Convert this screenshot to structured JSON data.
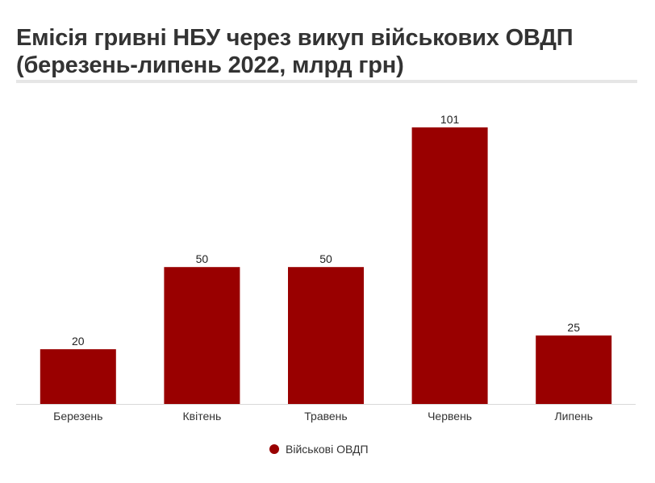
{
  "header": {
    "title_line1": "Емісія гривні НБУ через викуп військових ОВДП",
    "title_line2": "(березень-липень 2022, млрд грн)"
  },
  "colors": {
    "bar": "#990000",
    "baseline": "#d9d9d9",
    "title_rule": "#e6e6e6"
  },
  "chart_data": {
    "type": "bar",
    "categories": [
      "Березень",
      "Квітень",
      "Травень",
      "Червень",
      "Липень"
    ],
    "series": [
      {
        "name": "Військові ОВДП",
        "values": [
          20,
          50,
          50,
          101,
          25
        ]
      }
    ],
    "value_labels": [
      "20",
      "50",
      "50",
      "101",
      "25"
    ],
    "ylim": [
      0,
      101
    ],
    "grid": false,
    "legend": "bottom-center",
    "xlabel": "",
    "ylabel": ""
  }
}
